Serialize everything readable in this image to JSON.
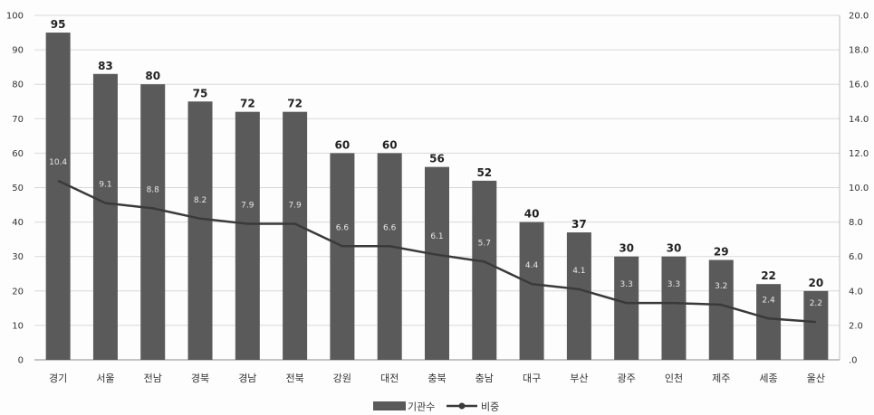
{
  "chart_data": {
    "type": "bar",
    "categories": [
      "경기",
      "서울",
      "전남",
      "경북",
      "경남",
      "전북",
      "강원",
      "대전",
      "충북",
      "충남",
      "대구",
      "부산",
      "광주",
      "인천",
      "제주",
      "세종",
      "울산"
    ],
    "series": [
      {
        "name": "기관수",
        "type": "bar",
        "axis": "left",
        "values": [
          95,
          83,
          80,
          75,
          72,
          72,
          60,
          60,
          56,
          52,
          40,
          37,
          30,
          30,
          29,
          22,
          20
        ],
        "labels": [
          "95",
          "83",
          "80",
          "75",
          "72",
          "72",
          "60",
          "60",
          "56",
          "52",
          "40",
          "37",
          "30",
          "30",
          "29",
          "22",
          "20"
        ]
      },
      {
        "name": "비중",
        "type": "line",
        "axis": "right",
        "values": [
          10.4,
          9.1,
          8.8,
          8.2,
          7.9,
          7.9,
          6.6,
          6.6,
          6.1,
          5.7,
          4.4,
          4.1,
          3.3,
          3.3,
          3.2,
          2.4,
          2.2
        ],
        "labels": [
          "10.4",
          "9.1",
          "8.8",
          "8.2",
          "7.9",
          "7.9",
          "6.6",
          "6.6",
          "6.1",
          "5.7",
          "4.4",
          "4.1",
          "3.3",
          "3.3",
          "3.2",
          "2.4",
          "2.2"
        ]
      }
    ],
    "y_left": {
      "min": 0,
      "max": 100,
      "ticks": [
        "0",
        "10",
        "20",
        "30",
        "40",
        "50",
        "60",
        "70",
        "80",
        "90",
        "100"
      ]
    },
    "y_right": {
      "min": 0,
      "max": 20,
      "ticks": [
        ".0",
        "2.0",
        "4.0",
        "6.0",
        "8.0",
        "10.0",
        "12.0",
        "14.0",
        "16.0",
        "18.0",
        "20.0"
      ]
    },
    "grid": true,
    "legend": "bottom",
    "colors": {
      "bar": "#5a5a5a",
      "line": "#3a3a3a",
      "grid": "#d9d9d9",
      "background": "#fdfdfd"
    }
  }
}
